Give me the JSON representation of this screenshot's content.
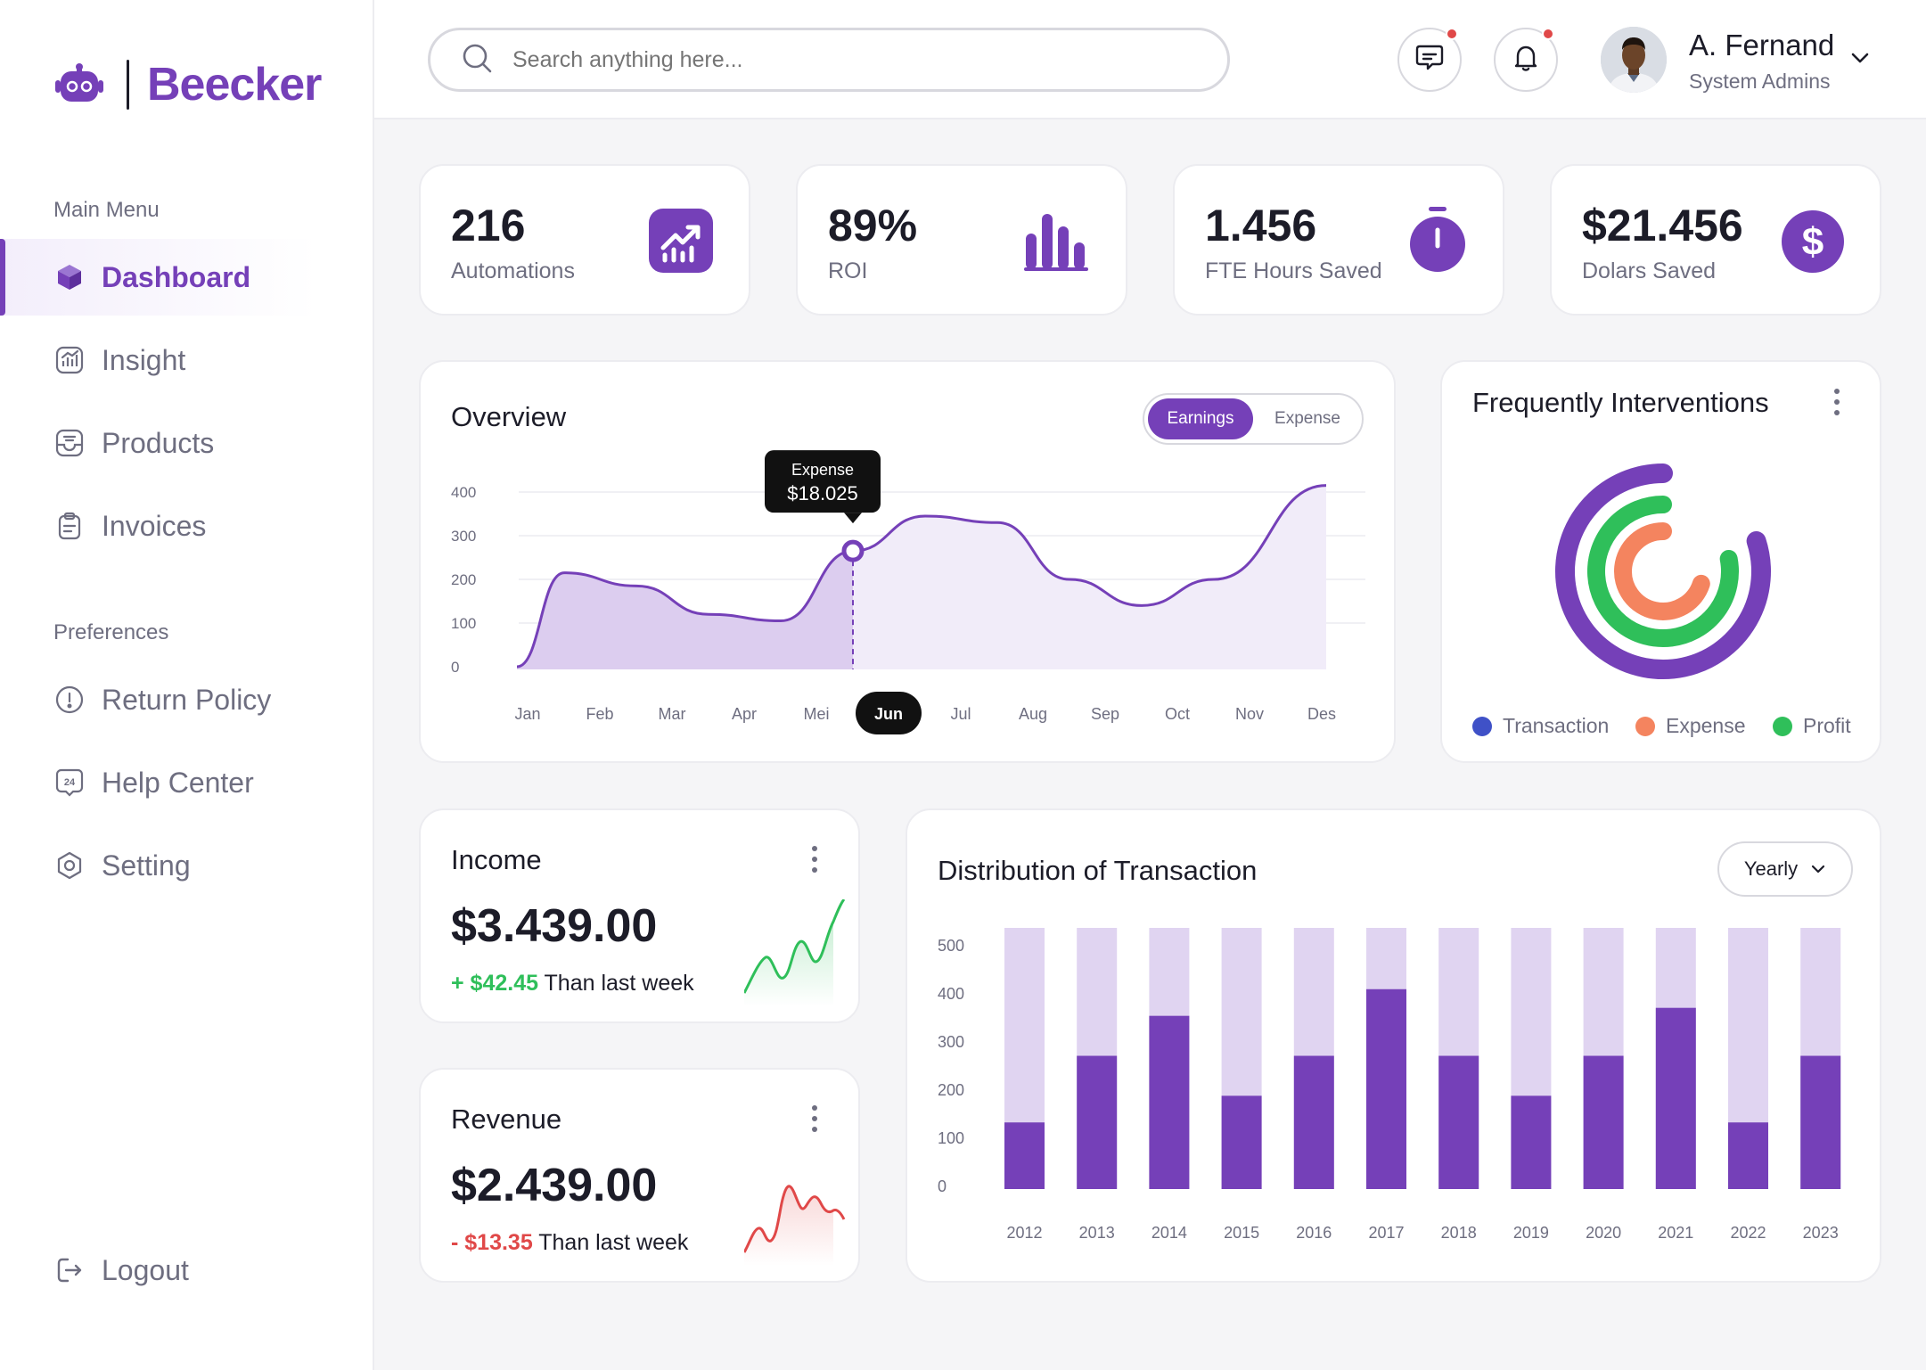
{
  "brand": {
    "name": "Beecker"
  },
  "sidebar": {
    "main_heading": "Main Menu",
    "main_items": [
      {
        "label": "Dashboard",
        "icon": "cube-icon",
        "active": true
      },
      {
        "label": "Insight",
        "icon": "chart-icon"
      },
      {
        "label": "Products",
        "icon": "inbox-icon"
      },
      {
        "label": "Invoices",
        "icon": "clipboard-icon"
      }
    ],
    "pref_heading": "Preferences",
    "pref_items": [
      {
        "label": "Return Policy",
        "icon": "alert-circle-icon"
      },
      {
        "label": "Help Center",
        "icon": "support-24-icon"
      },
      {
        "label": "Setting",
        "icon": "gear-icon"
      }
    ],
    "logout": "Logout"
  },
  "header": {
    "search_placeholder": "Search anything here...",
    "user": {
      "name": "A. Fernand",
      "role": "System Admins"
    }
  },
  "stats": [
    {
      "value": "216",
      "label": "Automations",
      "icon": "trend-up-icon"
    },
    {
      "value": "89%",
      "label": "ROI",
      "icon": "bar-chart-icon"
    },
    {
      "value": "1.456",
      "label": "FTE Hours Saved",
      "icon": "stopwatch-icon"
    },
    {
      "value": "$21.456",
      "label": "Dolars Saved",
      "icon": "dollar-icon"
    }
  ],
  "overview": {
    "title": "Overview",
    "toggle": [
      "Earnings",
      "Expense"
    ],
    "tooltip": {
      "label": "Expense",
      "value": "$18.025"
    }
  },
  "interventions": {
    "title": "Frequently Interventions",
    "legend": [
      "Transaction",
      "Expense",
      "Profit"
    ]
  },
  "income": {
    "title": "Income",
    "amount": "$3.439.00",
    "delta": "+ $42.45",
    "delta_text": "Than last week"
  },
  "revenue": {
    "title": "Revenue",
    "amount": "$2.439.00",
    "delta": "- $13.35",
    "delta_text": "Than last week"
  },
  "distribution": {
    "title": "Distribution of Transaction",
    "period": "Yearly"
  },
  "colors": {
    "accent": "#7540b8",
    "accent_light": "#e0d4f1",
    "green": "#2fbf5a",
    "red": "#e04848",
    "orange": "#f4845f",
    "blue": "#3f51c7"
  },
  "chart_data": [
    {
      "type": "area",
      "title": "Overview",
      "categories": [
        "Jan",
        "Feb",
        "Mar",
        "Apr",
        "Mei",
        "Jun",
        "Jul",
        "Aug",
        "Sep",
        "Oct",
        "Nov",
        "Des"
      ],
      "x_start_label": "",
      "series": [
        {
          "name": "Earnings",
          "values": [
            0,
            215,
            185,
            120,
            105,
            265,
            345,
            330,
            200,
            140,
            200,
            415
          ]
        }
      ],
      "yticks": [
        0,
        100,
        200,
        300,
        400
      ],
      "ylim": [
        0,
        420
      ],
      "highlight_category": "Jun",
      "grid": true
    },
    {
      "type": "bar",
      "title": "Distribution of Transaction",
      "categories": [
        "2012",
        "2013",
        "2014",
        "2015",
        "2016",
        "2017",
        "2018",
        "2019",
        "2020",
        "2021",
        "2022",
        "2023"
      ],
      "series": [
        {
          "values": [
            125,
            250,
            325,
            175,
            250,
            375,
            250,
            175,
            250,
            340,
            125,
            250
          ]
        }
      ],
      "max_value": 490,
      "yticks": [
        0,
        100,
        200,
        300,
        400,
        500
      ],
      "ylim": [
        0,
        500
      ]
    },
    {
      "type": "radial",
      "title": "Frequently Interventions",
      "series": [
        {
          "name": "Transaction",
          "fraction": 0.8
        },
        {
          "name": "Profit",
          "fraction": 0.78
        },
        {
          "name": "Expense",
          "fraction": 0.7
        }
      ]
    }
  ]
}
